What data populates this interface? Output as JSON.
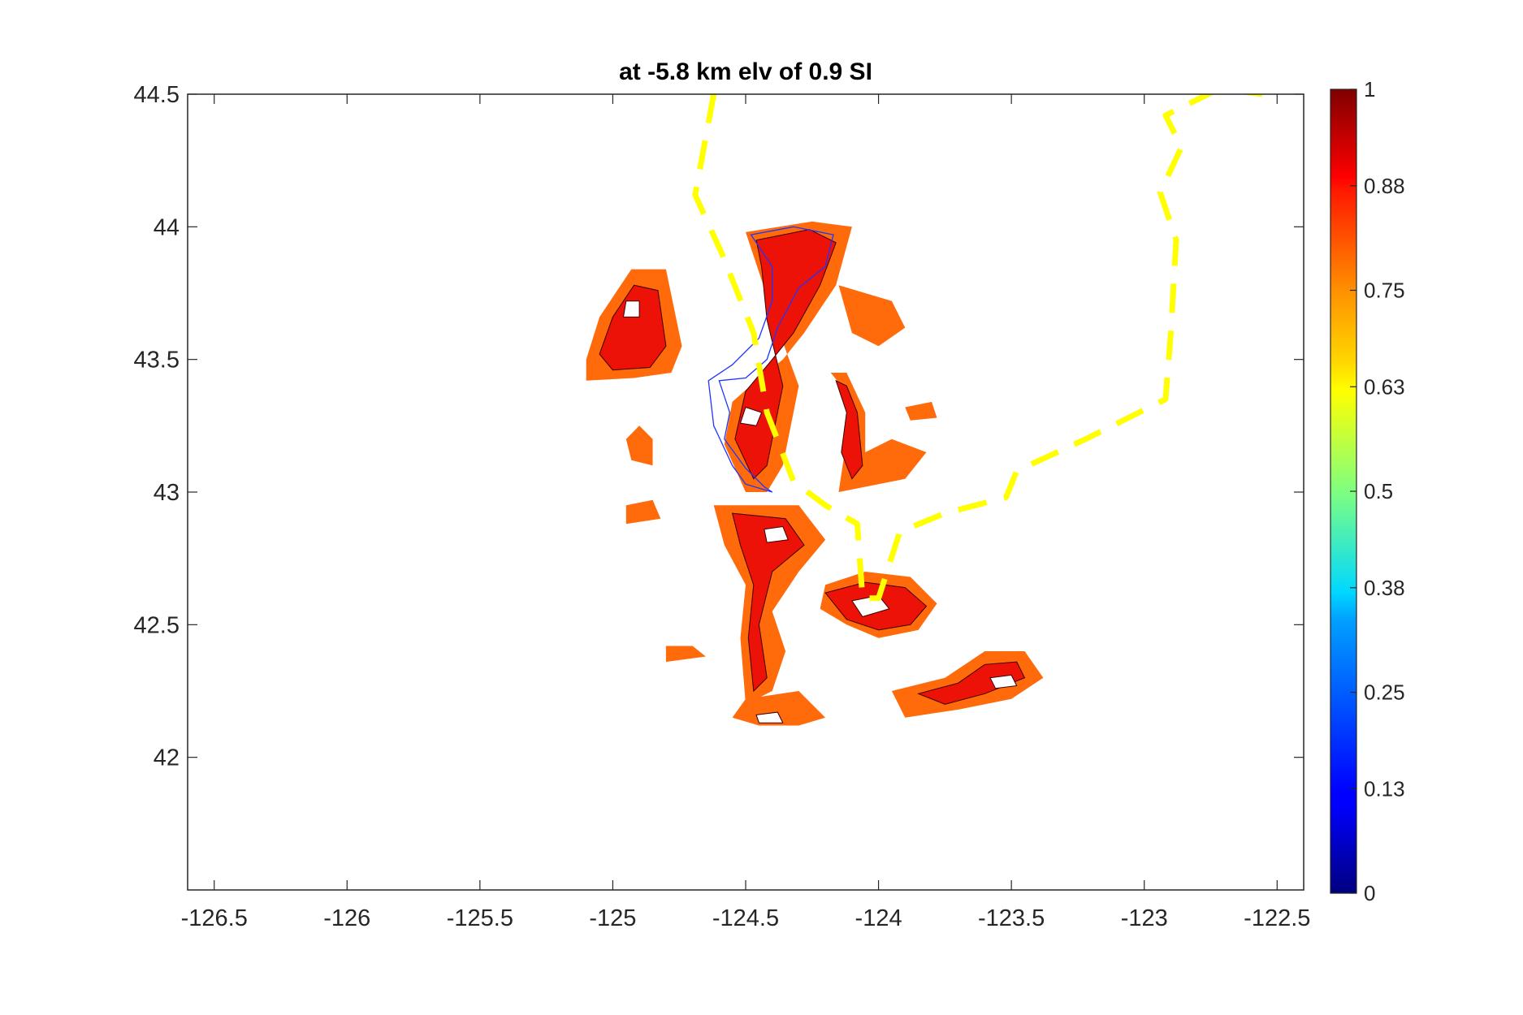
{
  "chart_data": {
    "type": "heatmap",
    "title": "at -5.8 km elv of 0.9 SI",
    "xlabel": "",
    "ylabel": "",
    "xlim": [
      -126.6,
      -122.4
    ],
    "ylim": [
      41.5,
      44.5
    ],
    "x_ticks": [
      -126.5,
      -126,
      -125.5,
      -125,
      -124.5,
      -124,
      -123.5,
      -123,
      -122.5
    ],
    "x_tick_labels": [
      "-126.5",
      "-126",
      "-125.5",
      "-125",
      "-124.5",
      "-124",
      "-123.5",
      "-123",
      "-122.5"
    ],
    "y_ticks": [
      42,
      42.5,
      43,
      43.5,
      44,
      44.5
    ],
    "y_tick_labels": [
      "42",
      "42.5",
      "43",
      "43.5",
      "44",
      "44.5"
    ],
    "grid": false,
    "colorbar": {
      "range": [
        0,
        1
      ],
      "colormap": "jet",
      "ticks": [
        0,
        0.13,
        0.25,
        0.38,
        0.5,
        0.63,
        0.75,
        0.88,
        1
      ],
      "tick_labels": [
        "0",
        "0.13",
        "0.25",
        "0.38",
        "0.5",
        "0.63",
        "0.75",
        "0.88",
        "1"
      ]
    },
    "levels": [
      {
        "name": "outer",
        "value": 0.8,
        "color": "#ff6a0a"
      },
      {
        "name": "inner",
        "value": 0.9,
        "color": "#ec1208"
      }
    ],
    "regions": [
      {
        "level": 0.8,
        "lonlat": [
          [
            -125.1,
            43.5
          ],
          [
            -125.05,
            43.66
          ],
          [
            -124.93,
            43.84
          ],
          [
            -124.8,
            43.84
          ],
          [
            -124.74,
            43.55
          ],
          [
            -124.78,
            43.45
          ],
          [
            -124.92,
            43.43
          ],
          [
            -125.1,
            43.42
          ]
        ]
      },
      {
        "level": 0.9,
        "lonlat": [
          [
            -125.05,
            43.52
          ],
          [
            -125.0,
            43.66
          ],
          [
            -124.92,
            43.78
          ],
          [
            -124.83,
            43.76
          ],
          [
            -124.8,
            43.55
          ],
          [
            -124.86,
            43.47
          ],
          [
            -125.0,
            43.46
          ]
        ]
      },
      {
        "level": 0.8,
        "lonlat": [
          [
            -124.5,
            43.98
          ],
          [
            -124.25,
            44.02
          ],
          [
            -124.1,
            44.0
          ],
          [
            -124.16,
            43.78
          ],
          [
            -124.28,
            43.6
          ],
          [
            -124.36,
            43.5
          ],
          [
            -124.46,
            43.42
          ],
          [
            -124.55,
            43.34
          ],
          [
            -124.58,
            43.18
          ],
          [
            -124.5,
            43.0
          ],
          [
            -124.42,
            43.0
          ],
          [
            -124.36,
            43.1
          ],
          [
            -124.3,
            43.4
          ],
          [
            -124.38,
            43.62
          ],
          [
            -124.44,
            43.8
          ]
        ]
      },
      {
        "level": 0.9,
        "lonlat": [
          [
            -124.46,
            43.95
          ],
          [
            -124.26,
            43.99
          ],
          [
            -124.16,
            43.94
          ],
          [
            -124.22,
            43.78
          ],
          [
            -124.32,
            43.6
          ],
          [
            -124.4,
            43.5
          ],
          [
            -124.5,
            43.38
          ],
          [
            -124.54,
            43.2
          ],
          [
            -124.47,
            43.05
          ],
          [
            -124.42,
            43.1
          ],
          [
            -124.36,
            43.4
          ],
          [
            -124.42,
            43.65
          ],
          [
            -124.44,
            43.85
          ]
        ]
      },
      {
        "level": 0.8,
        "lonlat": [
          [
            -124.15,
            43.78
          ],
          [
            -123.95,
            43.72
          ],
          [
            -123.9,
            43.62
          ],
          [
            -124.0,
            43.55
          ],
          [
            -124.1,
            43.6
          ]
        ]
      },
      {
        "level": 0.8,
        "lonlat": [
          [
            -124.18,
            43.45
          ],
          [
            -124.1,
            43.35
          ],
          [
            -124.12,
            43.2
          ],
          [
            -124.15,
            43.0
          ],
          [
            -124.05,
            43.02
          ],
          [
            -123.9,
            43.05
          ],
          [
            -123.82,
            43.15
          ],
          [
            -123.95,
            43.2
          ],
          [
            -124.05,
            43.15
          ],
          [
            -124.05,
            43.3
          ],
          [
            -124.12,
            43.45
          ]
        ]
      },
      {
        "level": 0.9,
        "lonlat": [
          [
            -124.16,
            43.42
          ],
          [
            -124.12,
            43.3
          ],
          [
            -124.14,
            43.15
          ],
          [
            -124.1,
            43.05
          ],
          [
            -124.06,
            43.1
          ],
          [
            -124.08,
            43.3
          ],
          [
            -124.12,
            43.4
          ]
        ]
      },
      {
        "level": 0.8,
        "lonlat": [
          [
            -124.62,
            42.95
          ],
          [
            -124.3,
            42.95
          ],
          [
            -124.2,
            42.82
          ],
          [
            -124.3,
            42.7
          ],
          [
            -124.4,
            42.55
          ],
          [
            -124.35,
            42.4
          ],
          [
            -124.4,
            42.25
          ],
          [
            -124.5,
            42.2
          ],
          [
            -124.52,
            42.45
          ],
          [
            -124.5,
            42.65
          ],
          [
            -124.58,
            42.8
          ]
        ]
      },
      {
        "level": 0.9,
        "lonlat": [
          [
            -124.55,
            42.92
          ],
          [
            -124.35,
            42.9
          ],
          [
            -124.28,
            42.8
          ],
          [
            -124.4,
            42.7
          ],
          [
            -124.45,
            42.5
          ],
          [
            -124.42,
            42.3
          ],
          [
            -124.47,
            42.25
          ],
          [
            -124.49,
            42.45
          ],
          [
            -124.47,
            42.65
          ],
          [
            -124.52,
            42.8
          ]
        ]
      },
      {
        "level": 0.8,
        "lonlat": [
          [
            -124.2,
            42.65
          ],
          [
            -124.05,
            42.7
          ],
          [
            -123.88,
            42.68
          ],
          [
            -123.78,
            42.58
          ],
          [
            -123.85,
            42.48
          ],
          [
            -124.0,
            42.45
          ],
          [
            -124.12,
            42.5
          ],
          [
            -124.22,
            42.56
          ]
        ]
      },
      {
        "level": 0.9,
        "lonlat": [
          [
            -124.2,
            42.62
          ],
          [
            -124.05,
            42.66
          ],
          [
            -123.9,
            42.64
          ],
          [
            -123.82,
            42.57
          ],
          [
            -123.88,
            42.5
          ],
          [
            -124.0,
            42.48
          ],
          [
            -124.12,
            42.52
          ]
        ]
      },
      {
        "level": 0.8,
        "lonlat": [
          [
            -124.5,
            42.22
          ],
          [
            -124.3,
            42.25
          ],
          [
            -124.2,
            42.15
          ],
          [
            -124.3,
            42.12
          ],
          [
            -124.45,
            42.12
          ],
          [
            -124.55,
            42.15
          ]
        ]
      },
      {
        "level": 0.8,
        "lonlat": [
          [
            -123.95,
            42.25
          ],
          [
            -123.75,
            42.3
          ],
          [
            -123.6,
            42.4
          ],
          [
            -123.45,
            42.4
          ],
          [
            -123.38,
            42.3
          ],
          [
            -123.5,
            42.22
          ],
          [
            -123.7,
            42.18
          ],
          [
            -123.9,
            42.15
          ]
        ]
      },
      {
        "level": 0.9,
        "lonlat": [
          [
            -123.85,
            42.24
          ],
          [
            -123.7,
            42.28
          ],
          [
            -123.6,
            42.35
          ],
          [
            -123.48,
            42.36
          ],
          [
            -123.45,
            42.3
          ],
          [
            -123.6,
            42.24
          ],
          [
            -123.75,
            42.2
          ]
        ]
      },
      {
        "level": 0.8,
        "lonlat": [
          [
            -124.9,
            43.25
          ],
          [
            -124.85,
            43.2
          ],
          [
            -124.85,
            43.1
          ],
          [
            -124.93,
            43.12
          ],
          [
            -124.95,
            43.2
          ]
        ]
      },
      {
        "level": 0.8,
        "lonlat": [
          [
            -124.95,
            42.95
          ],
          [
            -124.85,
            42.97
          ],
          [
            -124.82,
            42.9
          ],
          [
            -124.95,
            42.88
          ]
        ]
      },
      {
        "level": 0.8,
        "lonlat": [
          [
            -124.8,
            42.42
          ],
          [
            -124.7,
            42.42
          ],
          [
            -124.65,
            42.38
          ],
          [
            -124.8,
            42.36
          ]
        ]
      },
      {
        "level": 0.8,
        "lonlat": [
          [
            -123.9,
            43.32
          ],
          [
            -123.8,
            43.34
          ],
          [
            -123.78,
            43.28
          ],
          [
            -123.88,
            43.27
          ]
        ]
      }
    ],
    "holes": [
      {
        "lonlat": [
          [
            -124.5,
            43.32
          ],
          [
            -124.44,
            43.3
          ],
          [
            -124.46,
            43.25
          ],
          [
            -124.52,
            43.26
          ]
        ]
      },
      {
        "lonlat": [
          [
            -124.95,
            43.72
          ],
          [
            -124.9,
            43.72
          ],
          [
            -124.9,
            43.66
          ],
          [
            -124.96,
            43.66
          ]
        ]
      },
      {
        "lonlat": [
          [
            -124.43,
            42.86
          ],
          [
            -124.36,
            42.87
          ],
          [
            -124.34,
            42.82
          ],
          [
            -124.42,
            42.81
          ]
        ]
      },
      {
        "lonlat": [
          [
            -124.1,
            42.59
          ],
          [
            -124.0,
            42.61
          ],
          [
            -123.96,
            42.56
          ],
          [
            -124.06,
            42.53
          ]
        ]
      },
      {
        "lonlat": [
          [
            -124.46,
            42.16
          ],
          [
            -124.38,
            42.17
          ],
          [
            -124.36,
            42.13
          ],
          [
            -124.45,
            42.13
          ]
        ]
      },
      {
        "lonlat": [
          [
            -123.58,
            42.3
          ],
          [
            -123.5,
            42.31
          ],
          [
            -123.48,
            42.27
          ],
          [
            -123.56,
            42.26
          ]
        ]
      }
    ],
    "outline": {
      "color": "#1f35ff",
      "lonlat": [
        [
          -124.48,
          43.97
        ],
        [
          -124.32,
          44.0
        ],
        [
          -124.17,
          43.97
        ],
        [
          -124.2,
          43.85
        ],
        [
          -124.3,
          43.77
        ],
        [
          -124.38,
          43.62
        ],
        [
          -124.42,
          43.5
        ],
        [
          -124.5,
          43.43
        ],
        [
          -124.6,
          43.42
        ],
        [
          -124.56,
          43.3
        ],
        [
          -124.58,
          43.2
        ],
        [
          -124.5,
          43.09
        ],
        [
          -124.43,
          43.02
        ],
        [
          -124.4,
          43.0
        ],
        [
          -124.5,
          43.03
        ],
        [
          -124.55,
          43.1
        ],
        [
          -124.62,
          43.25
        ],
        [
          -124.64,
          43.42
        ],
        [
          -124.55,
          43.48
        ],
        [
          -124.45,
          43.58
        ],
        [
          -124.4,
          43.72
        ],
        [
          -124.4,
          43.85
        ]
      ]
    },
    "dashed_line": {
      "color": "#ffff00",
      "style": "dashed",
      "lonlat": [
        [
          -124.62,
          44.5
        ],
        [
          -124.69,
          44.12
        ],
        [
          -124.59,
          43.9
        ],
        [
          -124.47,
          43.6
        ],
        [
          -124.42,
          43.3
        ],
        [
          -124.32,
          43.04
        ],
        [
          -124.2,
          42.95
        ],
        [
          -124.08,
          42.88
        ],
        [
          -124.06,
          42.6
        ],
        [
          -124.0,
          42.6
        ],
        [
          -123.92,
          42.85
        ],
        [
          -123.75,
          42.92
        ],
        [
          -123.52,
          42.98
        ],
        [
          -123.48,
          43.08
        ],
        [
          -123.22,
          43.2
        ],
        [
          -122.92,
          43.35
        ],
        [
          -122.9,
          43.6
        ],
        [
          -122.88,
          43.95
        ],
        [
          -122.94,
          44.13
        ],
        [
          -122.86,
          44.3
        ],
        [
          -122.92,
          44.42
        ],
        [
          -122.72,
          44.52
        ],
        [
          -122.55,
          44.5
        ]
      ]
    }
  }
}
